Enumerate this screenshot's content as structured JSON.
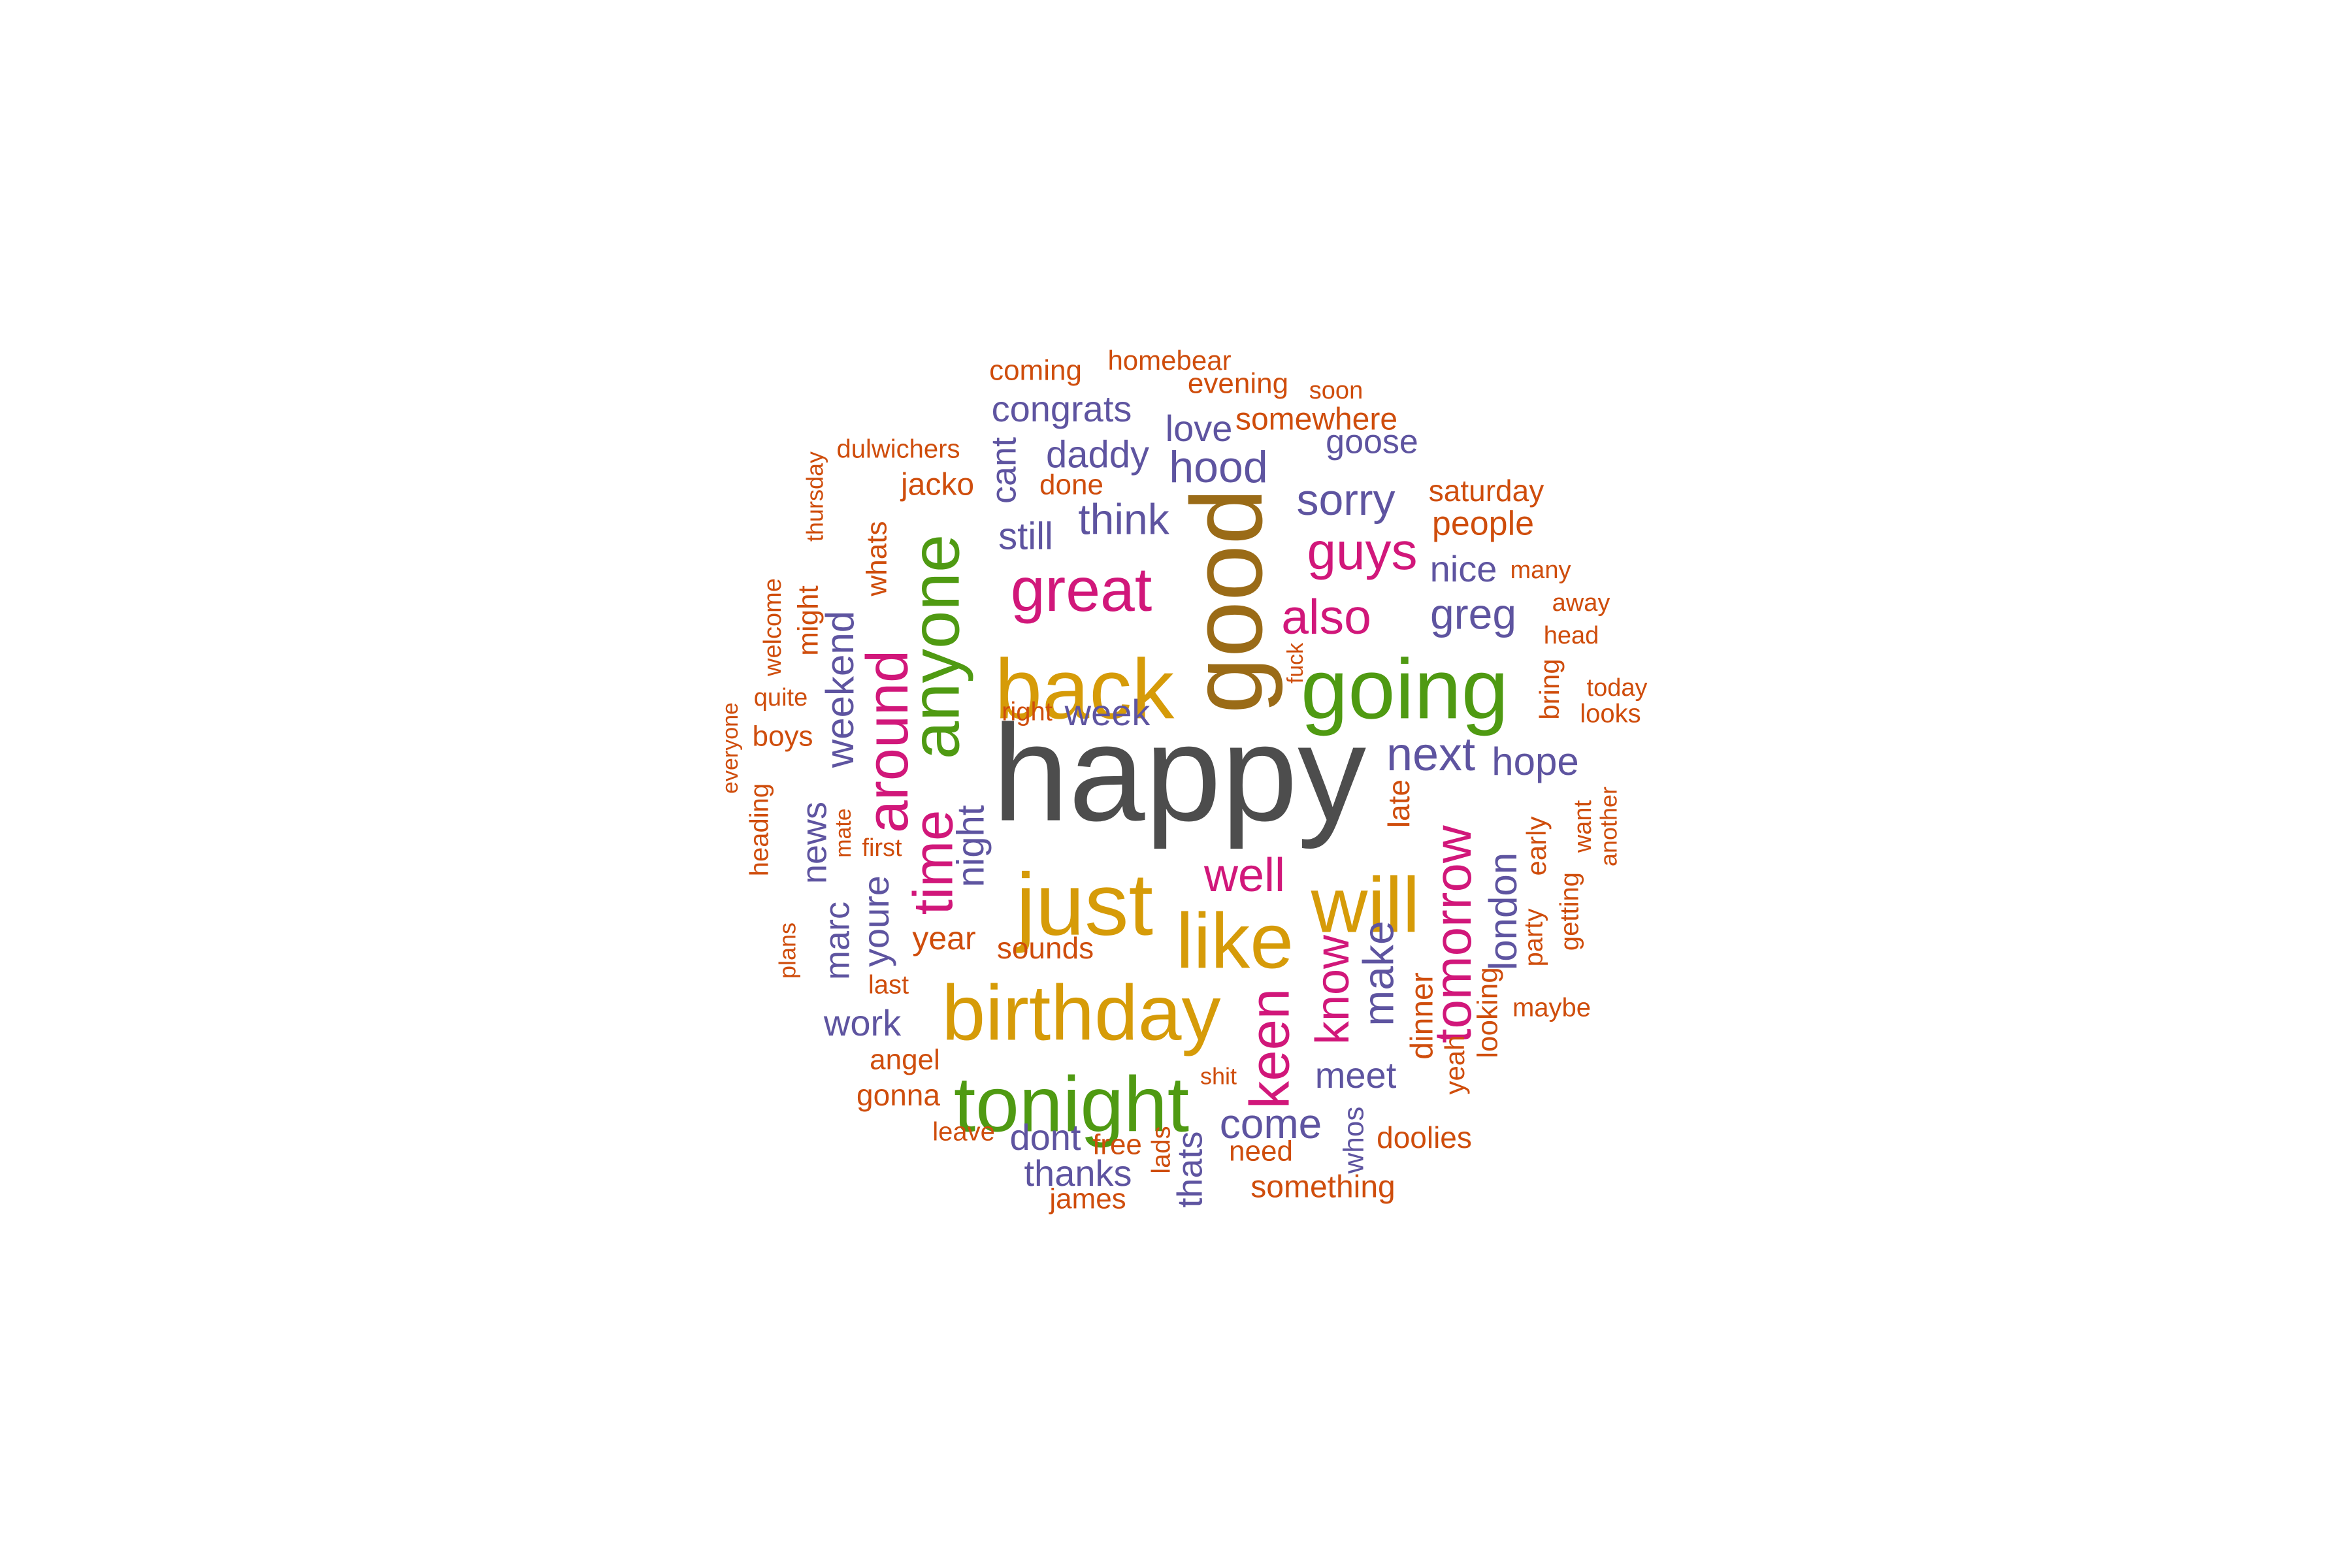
{
  "palette": {
    "dark_gray": "#4d4d4d",
    "brown": "#9a6b17",
    "gold": "#d69b08",
    "green": "#4f9a12",
    "magenta": "#d1177a",
    "purple": "#5e54a0",
    "orange": "#cf4d0c"
  },
  "words": [
    {
      "text": "happy",
      "color": "#4d4d4d",
      "weight": 1.0
    },
    {
      "text": "good",
      "color": "#9a6b17",
      "weight": 0.9
    },
    {
      "text": "back",
      "color": "#d69b08",
      "weight": 0.75
    },
    {
      "text": "just",
      "color": "#d69b08",
      "weight": 0.75
    },
    {
      "text": "birthday",
      "color": "#d69b08",
      "weight": 0.72
    },
    {
      "text": "like",
      "color": "#d69b08",
      "weight": 0.72
    },
    {
      "text": "will",
      "color": "#d69b08",
      "weight": 0.7
    },
    {
      "text": "anyone",
      "color": "#4f9a12",
      "weight": 0.68
    },
    {
      "text": "going",
      "color": "#4f9a12",
      "weight": 0.68
    },
    {
      "text": "tonight",
      "color": "#4f9a12",
      "weight": 0.64
    },
    {
      "text": "great",
      "color": "#d1177a",
      "weight": 0.55
    },
    {
      "text": "around",
      "color": "#d1177a",
      "weight": 0.52
    },
    {
      "text": "time",
      "color": "#d1177a",
      "weight": 0.5
    },
    {
      "text": "keen",
      "color": "#d1177a",
      "weight": 0.48
    },
    {
      "text": "tomorrow",
      "color": "#d1177a",
      "weight": 0.48
    },
    {
      "text": "guys",
      "color": "#d1177a",
      "weight": 0.45
    },
    {
      "text": "also",
      "color": "#d1177a",
      "weight": 0.45
    },
    {
      "text": "know",
      "color": "#d1177a",
      "weight": 0.45
    },
    {
      "text": "well",
      "color": "#d1177a",
      "weight": 0.42
    },
    {
      "text": "next",
      "color": "#5e54a0",
      "weight": 0.4
    },
    {
      "text": "hood",
      "color": "#5e54a0",
      "weight": 0.38
    },
    {
      "text": "sorry",
      "color": "#5e54a0",
      "weight": 0.38
    },
    {
      "text": "think",
      "color": "#5e54a0",
      "weight": 0.38
    },
    {
      "text": "greg",
      "color": "#5e54a0",
      "weight": 0.38
    },
    {
      "text": "make",
      "color": "#5e54a0",
      "weight": 0.38
    },
    {
      "text": "come",
      "color": "#5e54a0",
      "weight": 0.38
    },
    {
      "text": "weekend",
      "color": "#5e54a0",
      "weight": 0.36
    },
    {
      "text": "hope",
      "color": "#5e54a0",
      "weight": 0.36
    },
    {
      "text": "london",
      "color": "#5e54a0",
      "weight": 0.36
    },
    {
      "text": "night",
      "color": "#5e54a0",
      "weight": 0.35
    },
    {
      "text": "daddy",
      "color": "#5e54a0",
      "weight": 0.34
    },
    {
      "text": "congrats",
      "color": "#5e54a0",
      "weight": 0.34
    },
    {
      "text": "still",
      "color": "#5e54a0",
      "weight": 0.34
    },
    {
      "text": "nice",
      "color": "#5e54a0",
      "weight": 0.34
    },
    {
      "text": "love",
      "color": "#5e54a0",
      "weight": 0.34
    },
    {
      "text": "cant",
      "color": "#5e54a0",
      "weight": 0.34
    },
    {
      "text": "week",
      "color": "#5e54a0",
      "weight": 0.34
    },
    {
      "text": "news",
      "color": "#5e54a0",
      "weight": 0.34
    },
    {
      "text": "youre",
      "color": "#5e54a0",
      "weight": 0.34
    },
    {
      "text": "marc",
      "color": "#5e54a0",
      "weight": 0.34
    },
    {
      "text": "work",
      "color": "#5e54a0",
      "weight": 0.34
    },
    {
      "text": "meet",
      "color": "#5e54a0",
      "weight": 0.34
    },
    {
      "text": "dont",
      "color": "#5e54a0",
      "weight": 0.34
    },
    {
      "text": "thanks",
      "color": "#5e54a0",
      "weight": 0.34
    },
    {
      "text": "thats",
      "color": "#5e54a0",
      "weight": 0.32
    },
    {
      "text": "goose",
      "color": "#5e54a0",
      "weight": 0.32
    },
    {
      "text": "whos",
      "color": "#5e54a0",
      "weight": 0.28
    },
    {
      "text": "people",
      "color": "#cf4d0c",
      "weight": 0.3
    },
    {
      "text": "somewhere",
      "color": "#cf4d0c",
      "weight": 0.28
    },
    {
      "text": "saturday",
      "color": "#cf4d0c",
      "weight": 0.28
    },
    {
      "text": "jacko",
      "color": "#cf4d0c",
      "weight": 0.28
    },
    {
      "text": "year",
      "color": "#cf4d0c",
      "weight": 0.3
    },
    {
      "text": "dinner",
      "color": "#cf4d0c",
      "weight": 0.3
    },
    {
      "text": "late",
      "color": "#cf4d0c",
      "weight": 0.28
    },
    {
      "text": "doolies",
      "color": "#cf4d0c",
      "weight": 0.28
    },
    {
      "text": "something",
      "color": "#cf4d0c",
      "weight": 0.28
    },
    {
      "text": "sounds",
      "color": "#cf4d0c",
      "weight": 0.27
    },
    {
      "text": "evening",
      "color": "#cf4d0c",
      "weight": 0.26
    },
    {
      "text": "homebear",
      "color": "#cf4d0c",
      "weight": 0.26
    },
    {
      "text": "coming",
      "color": "#cf4d0c",
      "weight": 0.25
    },
    {
      "text": "soon",
      "color": "#cf4d0c",
      "weight": 0.23
    },
    {
      "text": "dulwichers",
      "color": "#cf4d0c",
      "weight": 0.25
    },
    {
      "text": "thursday",
      "color": "#cf4d0c",
      "weight": 0.23
    },
    {
      "text": "done",
      "color": "#cf4d0c",
      "weight": 0.26
    },
    {
      "text": "whats",
      "color": "#cf4d0c",
      "weight": 0.26
    },
    {
      "text": "might",
      "color": "#cf4d0c",
      "weight": 0.26
    },
    {
      "text": "welcome",
      "color": "#cf4d0c",
      "weight": 0.24
    },
    {
      "text": "quite",
      "color": "#cf4d0c",
      "weight": 0.24
    },
    {
      "text": "boys",
      "color": "#cf4d0c",
      "weight": 0.26
    },
    {
      "text": "everyone",
      "color": "#cf4d0c",
      "weight": 0.22
    },
    {
      "text": "heading",
      "color": "#cf4d0c",
      "weight": 0.24
    },
    {
      "text": "mate",
      "color": "#cf4d0c",
      "weight": 0.22
    },
    {
      "text": "first",
      "color": "#cf4d0c",
      "weight": 0.23
    },
    {
      "text": "plans",
      "color": "#cf4d0c",
      "weight": 0.23
    },
    {
      "text": "last",
      "color": "#cf4d0c",
      "weight": 0.25
    },
    {
      "text": "angel",
      "color": "#cf4d0c",
      "weight": 0.26
    },
    {
      "text": "gonna",
      "color": "#cf4d0c",
      "weight": 0.26
    },
    {
      "text": "leave",
      "color": "#cf4d0c",
      "weight": 0.24
    },
    {
      "text": "free",
      "color": "#cf4d0c",
      "weight": 0.26
    },
    {
      "text": "james",
      "color": "#cf4d0c",
      "weight": 0.25
    },
    {
      "text": "lads",
      "color": "#cf4d0c",
      "weight": 0.24
    },
    {
      "text": "need",
      "color": "#cf4d0c",
      "weight": 0.26
    },
    {
      "text": "shit",
      "color": "#cf4d0c",
      "weight": 0.22
    },
    {
      "text": "right",
      "color": "#cf4d0c",
      "weight": 0.25
    },
    {
      "text": "fuck",
      "color": "#cf4d0c",
      "weight": 0.22
    },
    {
      "text": "many",
      "color": "#cf4d0c",
      "weight": 0.23
    },
    {
      "text": "away",
      "color": "#cf4d0c",
      "weight": 0.23
    },
    {
      "text": "head",
      "color": "#cf4d0c",
      "weight": 0.23
    },
    {
      "text": "bring",
      "color": "#cf4d0c",
      "weight": 0.25
    },
    {
      "text": "today",
      "color": "#cf4d0c",
      "weight": 0.23
    },
    {
      "text": "looks",
      "color": "#cf4d0c",
      "weight": 0.24
    },
    {
      "text": "want",
      "color": "#cf4d0c",
      "weight": 0.23
    },
    {
      "text": "another",
      "color": "#cf4d0c",
      "weight": 0.23
    },
    {
      "text": "early",
      "color": "#cf4d0c",
      "weight": 0.25
    },
    {
      "text": "getting",
      "color": "#cf4d0c",
      "weight": 0.24
    },
    {
      "text": "party",
      "color": "#cf4d0c",
      "weight": 0.24
    },
    {
      "text": "looking",
      "color": "#cf4d0c",
      "weight": 0.26
    },
    {
      "text": "yeah",
      "color": "#cf4d0c",
      "weight": 0.25
    },
    {
      "text": "maybe",
      "color": "#cf4d0c",
      "weight": 0.24
    }
  ]
}
